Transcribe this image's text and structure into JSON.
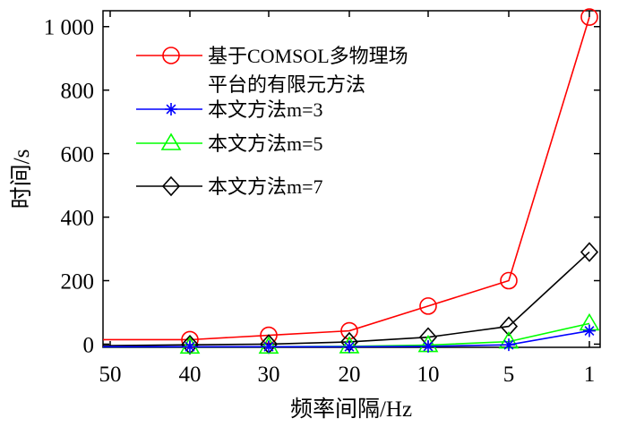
{
  "chart_data": {
    "type": "line",
    "xlabel": "频率间隔/Hz",
    "ylabel": "时间/s",
    "categories": [
      "50",
      "40",
      "30",
      "20",
      "10",
      "5",
      "1"
    ],
    "ylim": [
      -10,
      1050
    ],
    "yticks": [
      0,
      200,
      400,
      600,
      800,
      1000
    ],
    "ytick_labels": [
      "0",
      "200",
      "400",
      "600",
      "800",
      "1 000"
    ],
    "series": [
      {
        "name": "基于COMSOL多物理场平台的有限元方法",
        "name_lines": [
          "基于COMSOL多物理场",
          "平台的有限元方法"
        ],
        "color": "#ff0000",
        "marker": "circle",
        "values": [
          14,
          14,
          28,
          42,
          120,
          200,
          1030
        ]
      },
      {
        "name": "本文方法m=3",
        "name_lines": [
          "本文方法m=3"
        ],
        "color": "#0000ff",
        "marker": "star",
        "values": [
          -8,
          -8,
          -8,
          -8,
          -7,
          -2,
          42
        ]
      },
      {
        "name": "本文方法m=5",
        "name_lines": [
          "本文方法m=5"
        ],
        "color": "#00ff00",
        "marker": "triangle",
        "values": [
          -8,
          -8,
          -8,
          -7,
          -3,
          8,
          65
        ]
      },
      {
        "name": "本文方法m=7",
        "name_lines": [
          "本文方法m=7"
        ],
        "color": "#000000",
        "marker": "diamond",
        "values": [
          -5,
          -2,
          0,
          7,
          22,
          56,
          290
        ]
      }
    ],
    "legend_position": "top-left"
  }
}
